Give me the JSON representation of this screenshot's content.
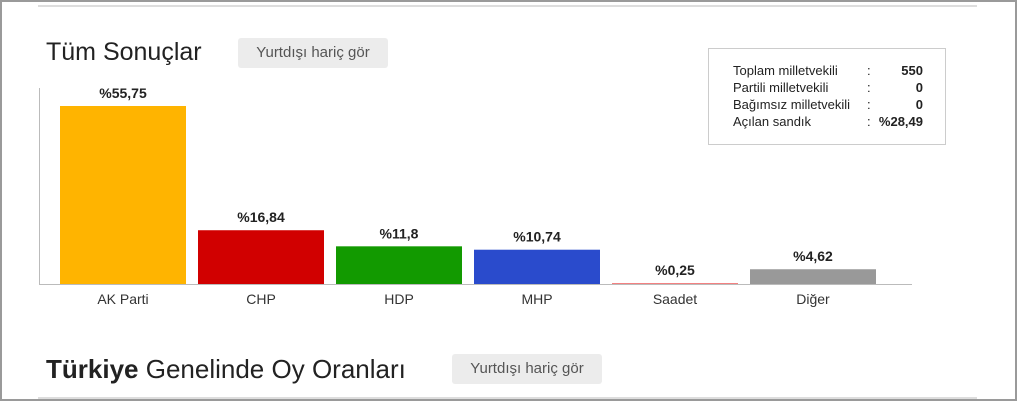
{
  "chart_data": {
    "type": "bar",
    "title": "Tüm Sonuçlar",
    "categories": [
      "AK Parti",
      "CHP",
      "HDP",
      "MHP",
      "Saadet",
      "Diğer"
    ],
    "values": [
      55.75,
      16.84,
      11.8,
      10.74,
      0.25,
      4.62
    ],
    "value_labels": [
      "%55,75",
      "%16,84",
      "%11,8",
      "%10,74",
      "%0,25",
      "%4,62"
    ],
    "colors": [
      "#ffb400",
      "#d10000",
      "#129a00",
      "#2a4bcc",
      "#f06262",
      "#999999"
    ]
  },
  "filter_button": "Yurtdışı hariç gör",
  "summary": {
    "separator": ":",
    "rows": [
      {
        "label": "Toplam milletvekili",
        "value": 550
      },
      {
        "label": "Partili milletvekili",
        "value": 0
      },
      {
        "label": "Bağımsız milletvekili",
        "value": 0
      },
      {
        "label": "Açılan sandık",
        "value": "%28,49"
      }
    ]
  },
  "section2": {
    "title_bold": "Türkiye",
    "title_rest": "Genelinde Oy Oranları",
    "filter_button": "Yurtdışı hariç gör"
  }
}
